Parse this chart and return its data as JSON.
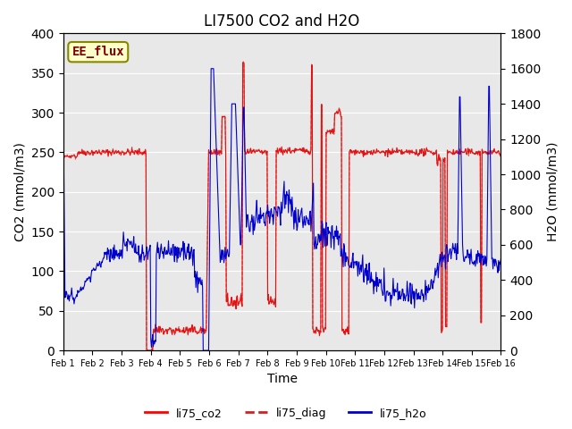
{
  "title": "LI7500 CO2 and H2O",
  "xlabel": "Time",
  "ylabel_left": "CO2 (mmol/m3)",
  "ylabel_right": "H2O (mmol/m3)",
  "ylim_left": [
    0,
    400
  ],
  "ylim_right": [
    0,
    1800
  ],
  "background_color": "#ffffff",
  "plot_bg_color": "#e8e8e8",
  "annotation_text": "EE_flux",
  "annotation_bg": "#ffffcc",
  "annotation_border": "#888800",
  "annotation_text_color": "#800000",
  "co2_color": "#ff0000",
  "diag_color": "#cc2222",
  "h2o_color": "#0000cc",
  "xtick_labels": [
    "Feb 1",
    "Feb 2",
    "Feb 3",
    "Feb 4",
    "Feb 5",
    "Feb 6",
    "Feb 7",
    "Feb 8",
    "Feb 9",
    "Feb 10",
    "Feb 11",
    "Feb 12",
    "Feb 13",
    "Feb 14",
    "Feb 15",
    "Feb 16"
  ],
  "legend_labels": [
    "li75_co2",
    "li75_diag",
    "li75_h2o"
  ],
  "title_fontsize": 12,
  "label_fontsize": 10
}
